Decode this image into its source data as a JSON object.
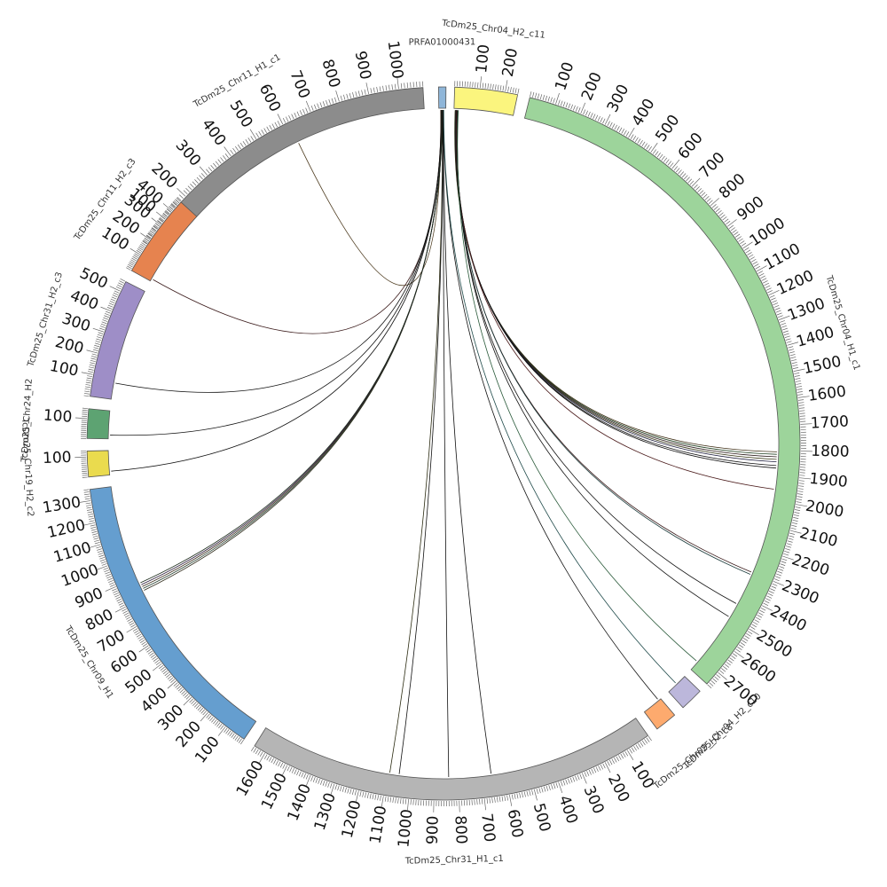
{
  "chart_data": {
    "type": "circos",
    "unit": "kb",
    "minor_tick_step": 10,
    "major_tick_step": 100,
    "chromosomes": [
      {
        "id": "TcDm25_Chr11_H1_c1",
        "label": "TcDm25_Chr11_H1_c1",
        "start_deg": -56,
        "end_deg": -3.3,
        "length": 1080,
        "color": "#8c8c8c",
        "ticks": true
      },
      {
        "id": "PRFA01000431",
        "label": "PRFA01000431",
        "start_deg": -0.8,
        "end_deg": 0.4,
        "length": 30,
        "color": "#8fb6d9",
        "ticks": false
      },
      {
        "id": "TcDm25_Chr04_H2_c11",
        "label": "TcDm25_Chr04_H2_c11",
        "start_deg": 1.8,
        "end_deg": 12.0,
        "length": 250,
        "color": "#fbf57e",
        "ticks": true
      },
      {
        "id": "TcDm25_Chr04_H1_c1",
        "label": "TcDm25_Chr04_H1_c1",
        "start_deg": 14.0,
        "end_deg": 132.4,
        "length": 2760,
        "color": "#9dd49b",
        "ticks": true
      },
      {
        "id": "TcDm25_Chr04_H2_c10",
        "label": "TcDm25_Chr04_H2_c10",
        "start_deg": 134.0,
        "end_deg": 137.8,
        "length": 40,
        "color": "#bcb7db",
        "ticks": false
      },
      {
        "id": "TcDm25_Chr09_H2_c8",
        "label": "TcDm25_Chr09_H2_c8",
        "start_deg": 139.6,
        "end_deg": 143.2,
        "length": 40,
        "color": "#fdaa6e",
        "ticks": false
      },
      {
        "id": "TcDm25_Chr31_H1_c1",
        "label": "TcDm25_Chr31_H1_c1",
        "start_deg": 145.0,
        "end_deg": 212.0,
        "length": 1650,
        "color": "#b5b5b5",
        "ticks": true
      },
      {
        "id": "TcDm25_Chr09_H1",
        "label": "TcDm25_Chr09_H1",
        "start_deg": 214.0,
        "end_deg": 262.6,
        "length": 1350,
        "color": "#659ecf",
        "ticks": true
      },
      {
        "id": "TcDm25_Chr19_H2_c2",
        "label": "TcDm25_Chr19_H2_c2",
        "start_deg": 264.6,
        "end_deg": 268.8,
        "length": 130,
        "color": "#eadb4e",
        "ticks": true
      },
      {
        "id": "TcDm25_Chr24_H2",
        "label": "TcDm25_Chr24_H2",
        "start_deg": 270.8,
        "end_deg": 275.6,
        "length": 150,
        "color": "#5da372",
        "ticks": true
      },
      {
        "id": "TcDm25_Chr31_H2_c3",
        "label": "TcDm25_Chr31_H2_c3",
        "start_deg": 277.6,
        "end_deg": 297.0,
        "length": 550,
        "color": "#9e8ec7",
        "ticks": true
      },
      {
        "id": "TcDm25_Chr11_H2_c3",
        "label": "TcDm25_Chr11_H2_c3",
        "start_deg": 299.0,
        "end_deg": 312.6,
        "length": 470,
        "color": "#e6834f",
        "ticks": true
      }
    ],
    "links": [
      {
        "from": "PRFA01000431",
        "from_pos": 8,
        "to": "TcDm25_Chr11_H1_c1",
        "to_pos": 620,
        "color": "#4d3b1f"
      },
      {
        "from": "PRFA01000431",
        "from_pos": 9,
        "to": "TcDm25_Chr11_H2_c3",
        "to_pos": 15,
        "color": "#3a1a1a"
      },
      {
        "from": "PRFA01000431",
        "from_pos": 10,
        "to": "TcDm25_Chr31_H2_c3",
        "to_pos": 80,
        "color": "#111111"
      },
      {
        "from": "PRFA01000431",
        "from_pos": 11,
        "to": "TcDm25_Chr24_H2",
        "to_pos": 20,
        "color": "#111111"
      },
      {
        "from": "PRFA01000431",
        "from_pos": 12,
        "to": "TcDm25_Chr19_H2_c2",
        "to_pos": 20,
        "color": "#111111"
      },
      {
        "from": "PRFA01000431",
        "from_pos": 13,
        "to": "TcDm25_Chr09_H1",
        "to_pos": 830,
        "color": "#2e2a1a"
      },
      {
        "from": "PRFA01000431",
        "from_pos": 13.5,
        "to": "TcDm25_Chr09_H1",
        "to_pos": 840,
        "color": "#1f3a2a"
      },
      {
        "from": "PRFA01000431",
        "from_pos": 14,
        "to": "TcDm25_Chr09_H1",
        "to_pos": 850,
        "color": "#3a2a1a"
      },
      {
        "from": "PRFA01000431",
        "from_pos": 14.5,
        "to": "TcDm25_Chr09_H1",
        "to_pos": 860,
        "color": "#2a1a3a"
      },
      {
        "from": "PRFA01000431",
        "from_pos": 15,
        "to": "TcDm25_Chr09_H1",
        "to_pos": 870,
        "color": "#1a2a1a"
      },
      {
        "from": "PRFA01000431",
        "from_pos": 16,
        "to": "TcDm25_Chr31_H1_c1",
        "to_pos": 1090,
        "color": "#2a2a10"
      },
      {
        "from": "PRFA01000431",
        "from_pos": 17,
        "to": "TcDm25_Chr31_H1_c1",
        "to_pos": 1050,
        "color": "#111111"
      },
      {
        "from": "PRFA01000431",
        "from_pos": 18,
        "to": "TcDm25_Chr31_H1_c1",
        "to_pos": 840,
        "color": "#111111"
      },
      {
        "from": "PRFA01000431",
        "from_pos": 19,
        "to": "TcDm25_Chr31_H1_c1",
        "to_pos": 660,
        "color": "#111111"
      },
      {
        "from": "PRFA01000431",
        "from_pos": 20,
        "to": "TcDm25_Chr09_H2_c8",
        "to_pos": 5,
        "color": "#111111"
      },
      {
        "from": "PRFA01000431",
        "from_pos": 21,
        "to": "TcDm25_Chr04_H2_c10",
        "to_pos": 20,
        "color": "#1f4a4a"
      },
      {
        "from": "TcDm25_Chr04_H2_c11",
        "from_pos": 5,
        "to": "TcDm25_Chr04_H1_c1",
        "to_pos": 1805,
        "color": "#3a2a10"
      },
      {
        "from": "TcDm25_Chr04_H2_c11",
        "from_pos": 6,
        "to": "TcDm25_Chr04_H1_c1",
        "to_pos": 1815,
        "color": "#1a3a1a"
      },
      {
        "from": "TcDm25_Chr04_H2_c11",
        "from_pos": 7,
        "to": "TcDm25_Chr04_H1_c1",
        "to_pos": 1825,
        "color": "#2a1a1a"
      },
      {
        "from": "TcDm25_Chr04_H2_c11",
        "from_pos": 8,
        "to": "TcDm25_Chr04_H1_c1",
        "to_pos": 1835,
        "color": "#3a3a1a"
      },
      {
        "from": "TcDm25_Chr04_H2_c11",
        "from_pos": 9,
        "to": "TcDm25_Chr04_H1_c1",
        "to_pos": 1845,
        "color": "#1a1a3a"
      },
      {
        "from": "TcDm25_Chr04_H2_c11",
        "from_pos": 10,
        "to": "TcDm25_Chr04_H1_c1",
        "to_pos": 1860,
        "color": "#111111"
      },
      {
        "from": "TcDm25_Chr04_H2_c11",
        "from_pos": 11,
        "to": "TcDm25_Chr04_H1_c1",
        "to_pos": 1870,
        "color": "#111111"
      },
      {
        "from": "TcDm25_Chr04_H2_c11",
        "from_pos": 12,
        "to": "TcDm25_Chr04_H1_c1",
        "to_pos": 1955,
        "color": "#4a1a1a"
      },
      {
        "from": "TcDm25_Chr04_H2_c11",
        "from_pos": 14,
        "to": "TcDm25_Chr04_H1_c1",
        "to_pos": 2300,
        "color": "#3a1a1a"
      },
      {
        "from": "TcDm25_Chr04_H2_c11",
        "from_pos": 15,
        "to": "TcDm25_Chr04_H1_c1",
        "to_pos": 2310,
        "color": "#1a3a3a"
      },
      {
        "from": "TcDm25_Chr04_H2_c11",
        "from_pos": 16,
        "to": "TcDm25_Chr04_H1_c1",
        "to_pos": 2440,
        "color": "#111111"
      },
      {
        "from": "TcDm25_Chr04_H2_c11",
        "from_pos": 17,
        "to": "TcDm25_Chr04_H1_c1",
        "to_pos": 2500,
        "color": "#111111"
      },
      {
        "from": "TcDm25_Chr04_H2_c11",
        "from_pos": 18,
        "to": "TcDm25_Chr04_H1_c1",
        "to_pos": 2720,
        "color": "#2a5a3a"
      }
    ]
  }
}
